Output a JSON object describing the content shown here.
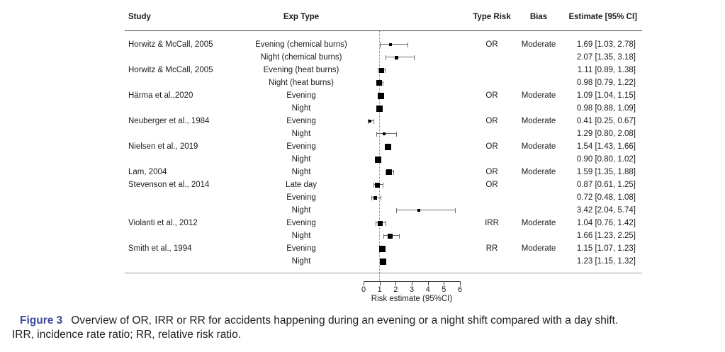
{
  "caption": {
    "figure_label": "Figure 3",
    "line1": "Overview of OR, IRR or RR for accidents happening during an evening or a night shift compared with a day shift.",
    "line2": "IRR, incidence rate ratio; RR, relative risk ratio.",
    "accent_color": "#3A4A9E"
  },
  "chart_data": {
    "type": "scatter",
    "subtype": "forest-plot",
    "title": "",
    "xlabel": "Risk estimate (95%CI)",
    "xlim": [
      0,
      6
    ],
    "xticks": [
      0,
      1,
      2,
      3,
      4,
      5,
      6
    ],
    "reference_line_x": 1,
    "grid": false,
    "marker_color": "#000000",
    "columns": {
      "study": "Study",
      "exp_type": "Exp Type",
      "type_risk": "Type Risk",
      "bias": "Bias",
      "estimate": "Estimate [95% CI]"
    },
    "rows": [
      {
        "study": "Horwitz & McCall, 2005",
        "exp_type": "Evening (chemical burns)",
        "type_risk": "OR",
        "bias": "Moderate",
        "estimate_label": "1.69 [1.03, 2.78]",
        "estimate": 1.69,
        "ci_low": 1.03,
        "ci_high": 2.78,
        "marker_size": 4
      },
      {
        "study": "",
        "exp_type": "Night (chemical burns)",
        "type_risk": "",
        "bias": "",
        "estimate_label": "2.07 [1.35, 3.18]",
        "estimate": 2.07,
        "ci_low": 1.35,
        "ci_high": 3.18,
        "marker_size": 5
      },
      {
        "study": "Horwitz & McCall, 2005",
        "exp_type": "Evening (heat burns)",
        "type_risk": "",
        "bias": "",
        "estimate_label": "1.11 [0.89, 1.38]",
        "estimate": 1.11,
        "ci_low": 0.89,
        "ci_high": 1.38,
        "marker_size": 7
      },
      {
        "study": "",
        "exp_type": "Night (heat burns)",
        "type_risk": "",
        "bias": "",
        "estimate_label": "0.98 [0.79, 1.22]",
        "estimate": 0.98,
        "ci_low": 0.79,
        "ci_high": 1.22,
        "marker_size": 8
      },
      {
        "study": "Härma et al.,2020",
        "exp_type": "Evening",
        "type_risk": "OR",
        "bias": "Moderate",
        "estimate_label": "1.09 [1.04, 1.15]",
        "estimate": 1.09,
        "ci_low": 1.04,
        "ci_high": 1.15,
        "marker_size": 9
      },
      {
        "study": "",
        "exp_type": "Night",
        "type_risk": "",
        "bias": "",
        "estimate_label": "0.98 [0.88, 1.09]",
        "estimate": 0.98,
        "ci_low": 0.88,
        "ci_high": 1.09,
        "marker_size": 9
      },
      {
        "study": "Neuberger et al., 1984",
        "exp_type": "Evening",
        "type_risk": "OR",
        "bias": "Moderate",
        "estimate_label": "0.41 [0.25, 0.67]",
        "estimate": 0.41,
        "ci_low": 0.25,
        "ci_high": 0.67,
        "marker_size": 4
      },
      {
        "study": "",
        "exp_type": "Night",
        "type_risk": "",
        "bias": "",
        "estimate_label": "1.29 [0.80, 2.08]",
        "estimate": 1.29,
        "ci_low": 0.8,
        "ci_high": 2.08,
        "marker_size": 4
      },
      {
        "study": "Nielsen et al., 2019",
        "exp_type": "Evening",
        "type_risk": "OR",
        "bias": "Moderate",
        "estimate_label": "1.54 [1.43, 1.66]",
        "estimate": 1.54,
        "ci_low": 1.43,
        "ci_high": 1.66,
        "marker_size": 9
      },
      {
        "study": "",
        "exp_type": "Night",
        "type_risk": "",
        "bias": "",
        "estimate_label": "0.90 [0.80, 1.02]",
        "estimate": 0.9,
        "ci_low": 0.8,
        "ci_high": 1.02,
        "marker_size": 9
      },
      {
        "study": "Lam, 2004",
        "exp_type": "Night",
        "type_risk": "OR",
        "bias": "Moderate",
        "estimate_label": "1.59 [1.35, 1.88]",
        "estimate": 1.59,
        "ci_low": 1.35,
        "ci_high": 1.88,
        "marker_size": 8
      },
      {
        "study": "Stevenson et al., 2014",
        "exp_type": "Late day",
        "type_risk": "OR",
        "bias": "",
        "estimate_label": "0.87 [0.61, 1.25]",
        "estimate": 0.87,
        "ci_low": 0.61,
        "ci_high": 1.25,
        "marker_size": 7
      },
      {
        "study": "",
        "exp_type": "Evening",
        "type_risk": "",
        "bias": "",
        "estimate_label": "0.72 [0.48, 1.08]",
        "estimate": 0.72,
        "ci_low": 0.48,
        "ci_high": 1.08,
        "marker_size": 5
      },
      {
        "study": "",
        "exp_type": "Night",
        "type_risk": "",
        "bias": "",
        "estimate_label": "3.42 [2.04, 5.74]",
        "estimate": 3.42,
        "ci_low": 2.04,
        "ci_high": 5.74,
        "marker_size": 4
      },
      {
        "study": "Violanti et al., 2012",
        "exp_type": "Evening",
        "type_risk": "IRR",
        "bias": "Moderate",
        "estimate_label": "1.04 [0.76, 1.42]",
        "estimate": 1.04,
        "ci_low": 0.76,
        "ci_high": 1.42,
        "marker_size": 7
      },
      {
        "study": "",
        "exp_type": "Night",
        "type_risk": "",
        "bias": "",
        "estimate_label": "1.66 [1.23, 2.25]",
        "estimate": 1.66,
        "ci_low": 1.23,
        "ci_high": 2.25,
        "marker_size": 7
      },
      {
        "study": "Smith et al., 1994",
        "exp_type": "Evening",
        "type_risk": "RR",
        "bias": "Moderate",
        "estimate_label": "1.15 [1.07, 1.23]",
        "estimate": 1.15,
        "ci_low": 1.07,
        "ci_high": 1.23,
        "marker_size": 9
      },
      {
        "study": "",
        "exp_type": "Night",
        "type_risk": "",
        "bias": "",
        "estimate_label": "1.23 [1.15, 1.32]",
        "estimate": 1.23,
        "ci_low": 1.15,
        "ci_high": 1.32,
        "marker_size": 9
      }
    ]
  }
}
